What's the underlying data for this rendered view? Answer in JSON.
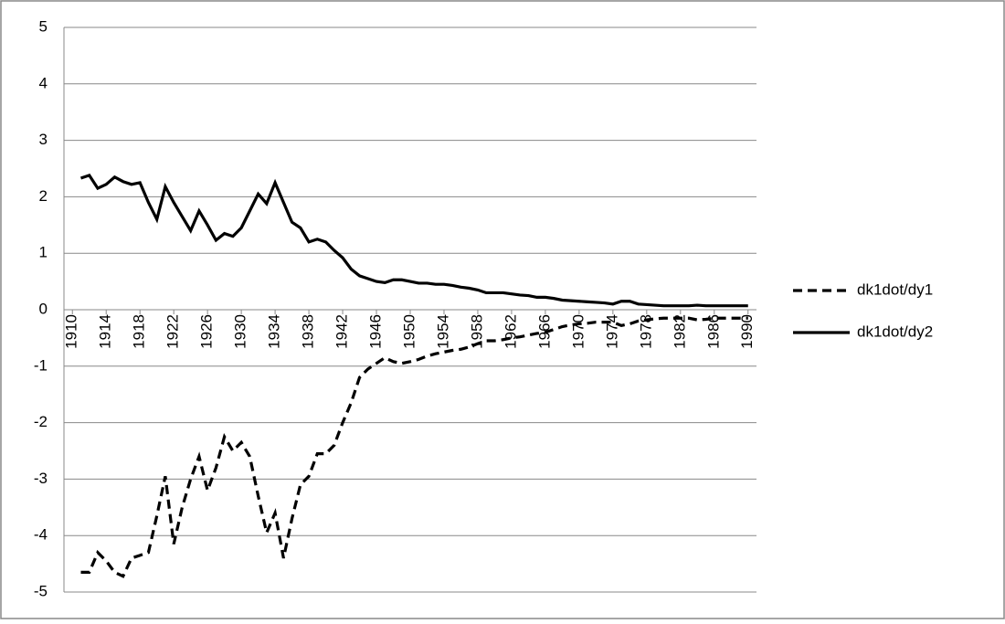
{
  "chart_data": {
    "type": "line",
    "x": [
      1911,
      1912,
      1913,
      1914,
      1915,
      1916,
      1917,
      1918,
      1919,
      1920,
      1921,
      1922,
      1923,
      1924,
      1925,
      1926,
      1927,
      1928,
      1929,
      1930,
      1931,
      1932,
      1933,
      1934,
      1935,
      1936,
      1937,
      1938,
      1939,
      1940,
      1941,
      1942,
      1943,
      1944,
      1945,
      1946,
      1947,
      1948,
      1949,
      1950,
      1951,
      1952,
      1953,
      1954,
      1955,
      1956,
      1957,
      1958,
      1959,
      1960,
      1961,
      1962,
      1963,
      1964,
      1965,
      1966,
      1967,
      1968,
      1969,
      1970,
      1971,
      1972,
      1973,
      1974,
      1975,
      1976,
      1977,
      1978,
      1979,
      1980,
      1981,
      1982,
      1983,
      1984,
      1985,
      1986,
      1987,
      1988,
      1989,
      1990
    ],
    "series": [
      {
        "name": "dk1dot/dy1",
        "color": "#000000",
        "dash": true,
        "values": [
          -4.65,
          -4.65,
          -4.3,
          -4.45,
          -4.65,
          -4.72,
          -4.4,
          -4.35,
          -4.3,
          -3.65,
          -2.95,
          -4.15,
          -3.5,
          -3.0,
          -2.6,
          -3.2,
          -2.8,
          -2.25,
          -2.5,
          -2.35,
          -2.6,
          -3.3,
          -3.95,
          -3.6,
          -4.4,
          -3.7,
          -3.1,
          -2.95,
          -2.55,
          -2.55,
          -2.4,
          -2.0,
          -1.65,
          -1.2,
          -1.05,
          -0.95,
          -0.85,
          -0.92,
          -0.95,
          -0.92,
          -0.88,
          -0.82,
          -0.78,
          -0.75,
          -0.72,
          -0.7,
          -0.66,
          -0.6,
          -0.55,
          -0.55,
          -0.53,
          -0.5,
          -0.48,
          -0.45,
          -0.42,
          -0.4,
          -0.35,
          -0.3,
          -0.27,
          -0.25,
          -0.24,
          -0.22,
          -0.22,
          -0.22,
          -0.28,
          -0.25,
          -0.2,
          -0.18,
          -0.16,
          -0.15,
          -0.15,
          -0.15,
          -0.15,
          -0.18,
          -0.17,
          -0.15,
          -0.15,
          -0.15,
          -0.15,
          -0.15
        ]
      },
      {
        "name": "dk1dot/dy2",
        "color": "#000000",
        "dash": false,
        "values": [
          2.33,
          2.38,
          2.15,
          2.22,
          2.35,
          2.27,
          2.22,
          2.25,
          1.9,
          1.6,
          2.18,
          1.9,
          1.65,
          1.4,
          1.75,
          1.5,
          1.23,
          1.35,
          1.3,
          1.45,
          1.75,
          2.05,
          1.88,
          2.25,
          1.9,
          1.55,
          1.45,
          1.2,
          1.25,
          1.2,
          1.05,
          0.92,
          0.72,
          0.6,
          0.55,
          0.5,
          0.48,
          0.53,
          0.53,
          0.5,
          0.47,
          0.47,
          0.45,
          0.45,
          0.43,
          0.4,
          0.38,
          0.35,
          0.3,
          0.3,
          0.3,
          0.28,
          0.26,
          0.25,
          0.22,
          0.22,
          0.2,
          0.17,
          0.16,
          0.15,
          0.14,
          0.13,
          0.12,
          0.1,
          0.15,
          0.15,
          0.1,
          0.09,
          0.08,
          0.07,
          0.07,
          0.07,
          0.07,
          0.08,
          0.07,
          0.07,
          0.07,
          0.07,
          0.07,
          0.07
        ]
      }
    ],
    "xlim": [
      1909,
      1991
    ],
    "xticks": [
      1910,
      1914,
      1918,
      1922,
      1926,
      1930,
      1934,
      1938,
      1942,
      1946,
      1950,
      1954,
      1958,
      1962,
      1966,
      1970,
      1974,
      1978,
      1982,
      1986,
      1990
    ],
    "ylim": [
      -5,
      5
    ],
    "yticks": [
      -5,
      -4,
      -3,
      -2,
      -1,
      0,
      1,
      2,
      3,
      4,
      5
    ],
    "grid": true,
    "legend": "right"
  }
}
